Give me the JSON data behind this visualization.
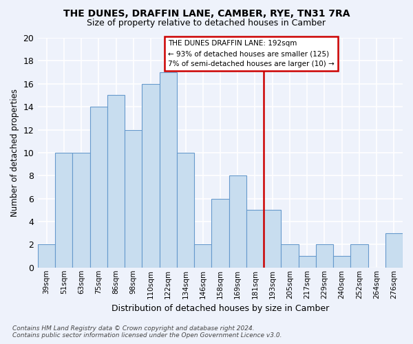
{
  "title": "THE DUNES, DRAFFIN LANE, CAMBER, RYE, TN31 7RA",
  "subtitle": "Size of property relative to detached houses in Camber",
  "xlabel": "Distribution of detached houses by size in Camber",
  "ylabel": "Number of detached properties",
  "categories": [
    "39sqm",
    "51sqm",
    "63sqm",
    "75sqm",
    "86sqm",
    "98sqm",
    "110sqm",
    "122sqm",
    "134sqm",
    "146sqm",
    "158sqm",
    "169sqm",
    "181sqm",
    "193sqm",
    "205sqm",
    "217sqm",
    "229sqm",
    "240sqm",
    "252sqm",
    "264sqm",
    "276sqm"
  ],
  "values": [
    2,
    10,
    10,
    14,
    15,
    12,
    16,
    17,
    10,
    2,
    6,
    8,
    5,
    5,
    2,
    1,
    2,
    1,
    2,
    0,
    3
  ],
  "bar_color": "#c8ddef",
  "bar_edge_color": "#6699cc",
  "vline_x_index": 13,
  "vline_color": "#cc0000",
  "annotation_text": "THE DUNES DRAFFIN LANE: 192sqm\n← 93% of detached houses are smaller (125)\n7% of semi-detached houses are larger (10) →",
  "annotation_box_color": "#cc0000",
  "ylim": [
    0,
    20
  ],
  "yticks": [
    0,
    2,
    4,
    6,
    8,
    10,
    12,
    14,
    16,
    18,
    20
  ],
  "footnote": "Contains HM Land Registry data © Crown copyright and database right 2024.\nContains public sector information licensed under the Open Government Licence v3.0.",
  "background_color": "#eef2fb",
  "grid_color": "#ffffff"
}
